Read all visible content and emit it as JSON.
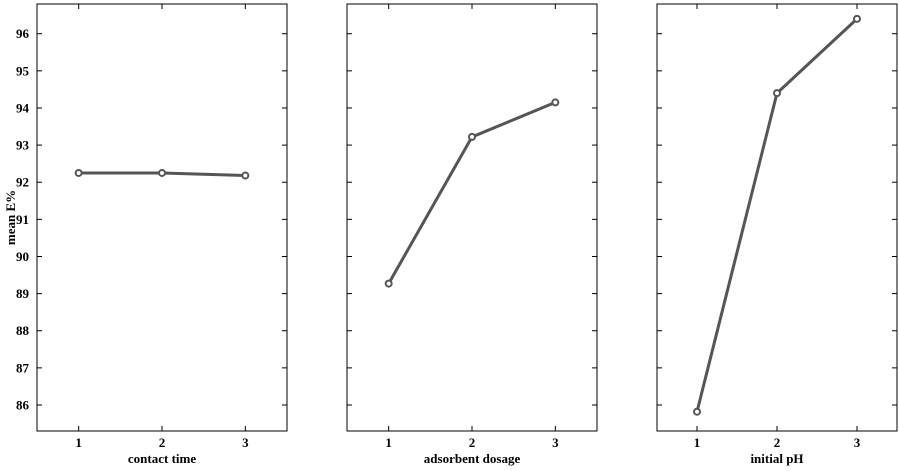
{
  "chart_data": {
    "type": "line",
    "ylabel": "mean E%",
    "ylim": [
      85.3,
      96.8
    ],
    "yticks": [
      86,
      87,
      88,
      89,
      90,
      91,
      92,
      93,
      94,
      95,
      96
    ],
    "x": [
      1,
      2,
      3
    ],
    "xlim": [
      0.5,
      3.5
    ],
    "line_color": "#555555",
    "grid": false,
    "panels": [
      {
        "xlabel": "contact time",
        "values": [
          92.25,
          92.25,
          92.18
        ]
      },
      {
        "xlabel": "adsorbent dosage",
        "values": [
          89.27,
          93.22,
          94.15
        ]
      },
      {
        "xlabel": "initial pH",
        "values": [
          85.82,
          94.4,
          96.4
        ]
      }
    ]
  }
}
